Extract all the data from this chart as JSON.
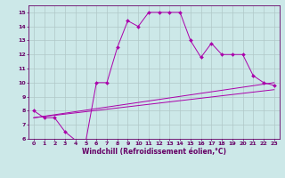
{
  "xlabel": "Windchill (Refroidissement éolien,°C)",
  "background_color": "#cce8e8",
  "grid_color": "#b0c8c8",
  "line_color": "#aa00aa",
  "xlim": [
    -0.5,
    23.5
  ],
  "ylim": [
    6,
    15.5
  ],
  "xticks": [
    0,
    1,
    2,
    3,
    4,
    5,
    6,
    7,
    8,
    9,
    10,
    11,
    12,
    13,
    14,
    15,
    16,
    17,
    18,
    19,
    20,
    21,
    22,
    23
  ],
  "yticks": [
    6,
    7,
    8,
    9,
    10,
    11,
    12,
    13,
    14,
    15
  ],
  "line1_x": [
    0,
    1,
    2,
    3,
    4,
    5,
    6,
    7,
    8,
    9,
    10,
    11,
    12,
    13,
    14,
    15,
    16,
    17,
    18,
    19,
    20,
    21,
    22,
    23
  ],
  "line1_y": [
    8.0,
    7.5,
    7.5,
    6.5,
    5.9,
    5.9,
    10.0,
    10.0,
    12.5,
    14.4,
    14.0,
    15.0,
    15.0,
    15.0,
    15.0,
    13.0,
    11.8,
    12.8,
    12.0,
    12.0,
    12.0,
    10.5,
    10.0,
    9.8
  ],
  "line2_x": [
    0,
    23
  ],
  "line2_y": [
    7.5,
    10.0
  ],
  "line3_x": [
    0,
    23
  ],
  "line3_y": [
    7.5,
    9.5
  ],
  "tick_fontsize": 4.5,
  "xlabel_fontsize": 5.5,
  "figsize": [
    3.2,
    2.0
  ],
  "dpi": 100
}
